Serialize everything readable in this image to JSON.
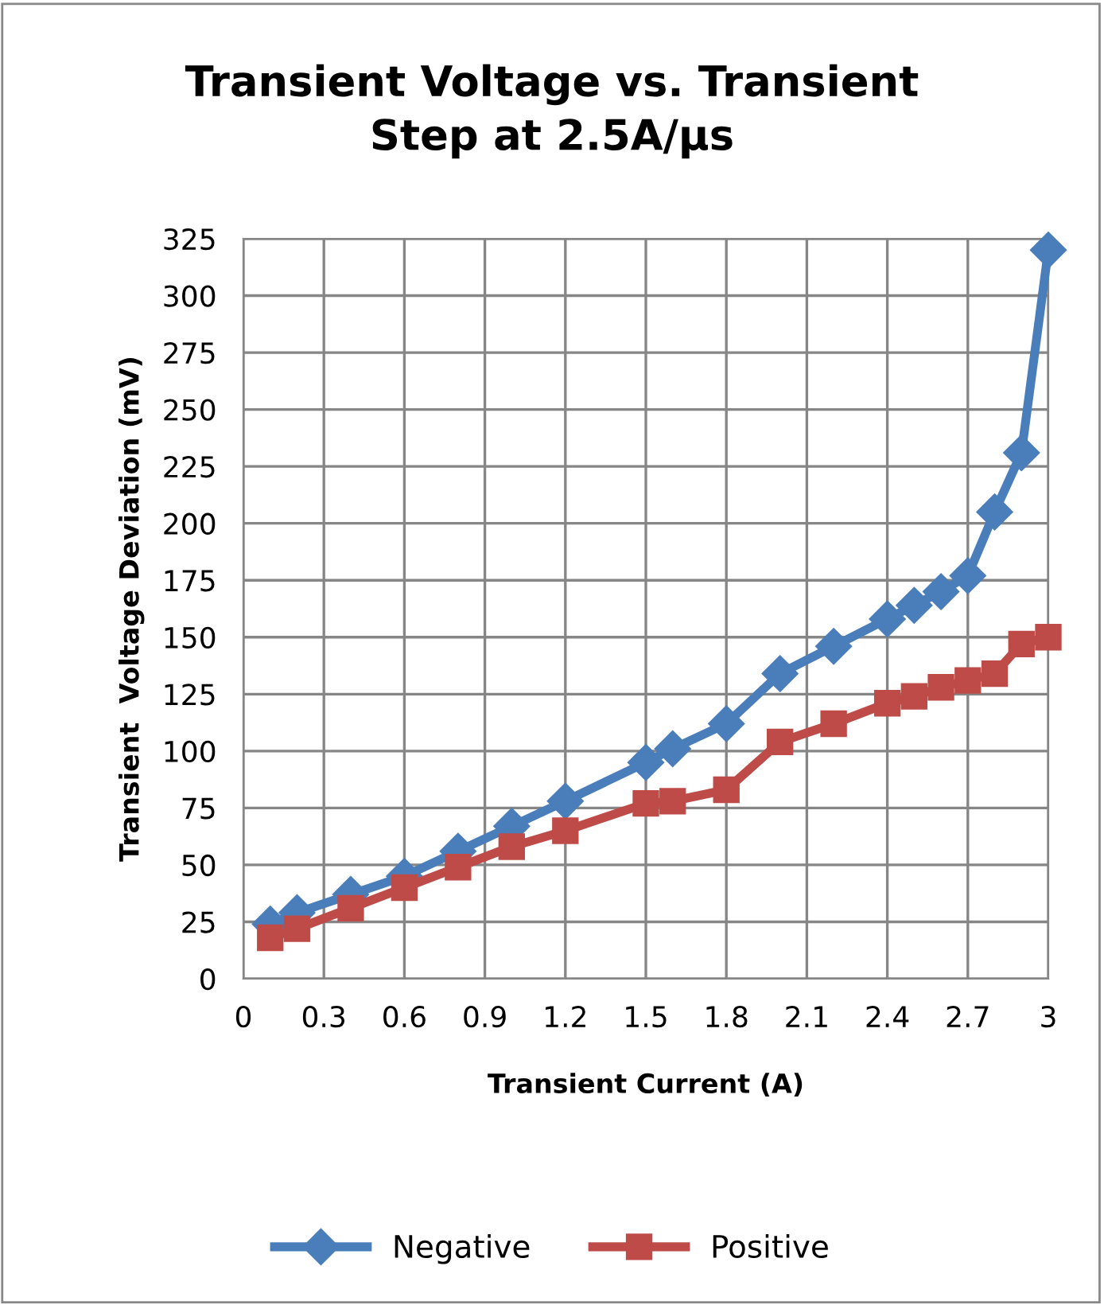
{
  "chart_data": {
    "type": "line",
    "title": "Transient Voltage vs. Transient\nStep at 2.5A/µs",
    "xlabel": "Transient Current (A)",
    "ylabel": "Transient  Voltage Deviation (mV)",
    "x": [
      0.1,
      0.2,
      0.4,
      0.6,
      0.8,
      1.0,
      1.2,
      1.5,
      1.6,
      1.8,
      2.0,
      2.2,
      2.4,
      2.5,
      2.6,
      2.7,
      2.8,
      2.9,
      3.0
    ],
    "series": [
      {
        "name": "Negative",
        "color": "#4a7ebb",
        "marker": "diamond",
        "values": [
          24,
          29,
          37,
          45,
          56,
          67,
          78,
          95,
          101,
          112,
          134,
          146,
          158,
          164,
          170,
          177,
          205,
          231,
          320
        ]
      },
      {
        "name": "Positive",
        "color": "#be4b48",
        "marker": "square",
        "values": [
          18,
          22,
          31,
          40,
          49,
          58,
          65,
          77,
          78,
          83,
          104,
          112,
          121,
          124,
          128,
          131,
          134,
          147,
          150
        ]
      }
    ],
    "xlim": [
      0,
      3
    ],
    "xticks": [
      0,
      0.3,
      0.6,
      0.9,
      1.2,
      1.5,
      1.8,
      2.1,
      2.4,
      2.7,
      3
    ],
    "ylim": [
      0,
      325
    ],
    "yticks": [
      0,
      25,
      50,
      75,
      100,
      125,
      150,
      175,
      200,
      225,
      250,
      275,
      300,
      325
    ],
    "grid": true,
    "legend": "bottom",
    "line_style": "solid"
  }
}
